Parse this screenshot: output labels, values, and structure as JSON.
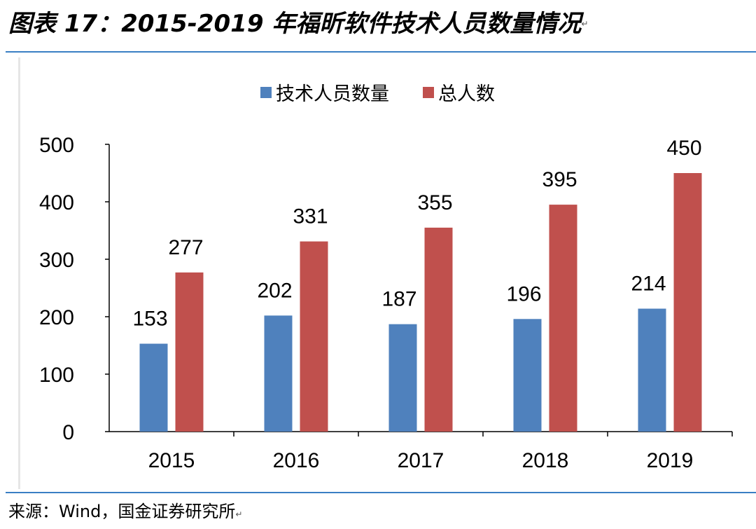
{
  "header": {
    "title": "图表 17：2015-2019 年福昕软件技术人员数量情况",
    "end_mark": "↵"
  },
  "footer": {
    "source": "来源：Wind，国金证券研究所",
    "end_mark": "↵"
  },
  "chart_data": {
    "type": "bar",
    "title": "",
    "xlabel": "",
    "ylabel": "",
    "categories": [
      "2015",
      "2016",
      "2017",
      "2018",
      "2019"
    ],
    "series": [
      {
        "name": "技术人员数量",
        "values": [
          153,
          202,
          187,
          196,
          214
        ],
        "color": "#4f81bd"
      },
      {
        "name": "总人数",
        "values": [
          277,
          331,
          355,
          395,
          450
        ],
        "color": "#c0504d"
      }
    ],
    "ylim": [
      0,
      500
    ],
    "yticks": [
      0,
      100,
      200,
      300,
      400,
      500
    ],
    "legend_position": "top-center",
    "grid": false,
    "data_labels": true
  }
}
